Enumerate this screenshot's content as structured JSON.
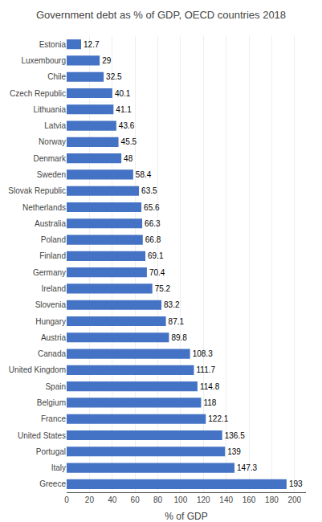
{
  "chart_data": {
    "type": "bar",
    "orientation": "horizontal",
    "title": "Government debt as % of GDP, OECD countries 2018",
    "xlabel": "% of GDP",
    "categories": [
      "Greece",
      "Italy",
      "Portugal",
      "United States",
      "France",
      "Belgium",
      "Spain",
      "United Kingdom",
      "Canada",
      "Austria",
      "Hungary",
      "Slovenia",
      "Ireland",
      "Germany",
      "Finland",
      "Poland",
      "Australia",
      "Netherlands",
      "Slovak Republic",
      "Sweden",
      "Denmark",
      "Norway",
      "Latvia",
      "Lithuania",
      "Czech Republic",
      "Chile",
      "Luxembourg",
      "Estonia"
    ],
    "values": [
      193,
      147.3,
      139,
      136.5,
      122.1,
      118,
      114.8,
      111.7,
      108.3,
      89.8,
      87.1,
      83.2,
      75.2,
      70.4,
      69.1,
      66.8,
      66.3,
      65.6,
      63.5,
      58.4,
      48,
      45.5,
      43.6,
      41.1,
      40.1,
      32.5,
      29,
      12.7
    ],
    "color": "#4472c4",
    "xlim": [
      0,
      210
    ],
    "xticks": [
      0,
      20,
      40,
      60,
      80,
      100,
      120,
      140,
      160,
      180,
      200
    ],
    "grid": true,
    "data_labels": true
  }
}
